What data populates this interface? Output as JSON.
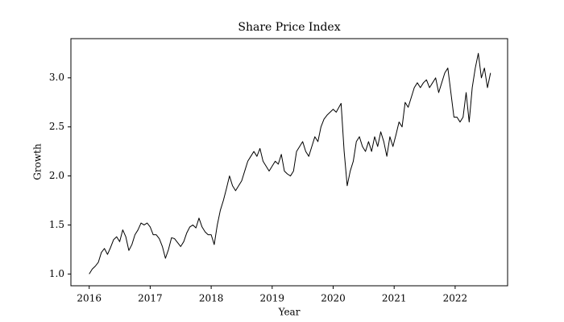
{
  "chart_data": {
    "type": "line",
    "title": "Share Price Index",
    "xlabel": "Year",
    "ylabel": "Growth",
    "xlim": [
      2015.7,
      2022.86
    ],
    "ylim": [
      0.88,
      3.4
    ],
    "xticks": [
      2016,
      2017,
      2018,
      2019,
      2020,
      2021,
      2022
    ],
    "yticks": [
      {
        "value": 1.0,
        "label": "1.0"
      },
      {
        "value": 1.5,
        "label": "1.5"
      },
      {
        "value": 2.0,
        "label": "2.0"
      },
      {
        "value": 2.5,
        "label": "2.5"
      },
      {
        "value": 3.0,
        "label": "3.0"
      }
    ],
    "grid": false,
    "color": "#000000",
    "x": [
      2016.0,
      2016.05,
      2016.1,
      2016.15,
      2016.2,
      2016.25,
      2016.3,
      2016.35,
      2016.4,
      2016.45,
      2016.5,
      2016.55,
      2016.6,
      2016.65,
      2016.7,
      2016.75,
      2016.8,
      2016.85,
      2016.9,
      2016.95,
      2017.0,
      2017.05,
      2017.1,
      2017.15,
      2017.2,
      2017.25,
      2017.3,
      2017.35,
      2017.4,
      2017.45,
      2017.5,
      2017.55,
      2017.6,
      2017.65,
      2017.7,
      2017.75,
      2017.8,
      2017.85,
      2017.9,
      2017.95,
      2018.0,
      2018.05,
      2018.1,
      2018.15,
      2018.2,
      2018.25,
      2018.3,
      2018.35,
      2018.4,
      2018.45,
      2018.5,
      2018.55,
      2018.6,
      2018.65,
      2018.7,
      2018.75,
      2018.8,
      2018.85,
      2018.9,
      2018.95,
      2019.0,
      2019.05,
      2019.1,
      2019.15,
      2019.2,
      2019.25,
      2019.3,
      2019.35,
      2019.4,
      2019.45,
      2019.5,
      2019.55,
      2019.6,
      2019.65,
      2019.7,
      2019.75,
      2019.8,
      2019.85,
      2019.9,
      2019.95,
      2020.0,
      2020.05,
      2020.13,
      2020.18,
      2020.23,
      2020.28,
      2020.33,
      2020.38,
      2020.43,
      2020.48,
      2020.53,
      2020.58,
      2020.63,
      2020.68,
      2020.73,
      2020.78,
      2020.83,
      2020.88,
      2020.93,
      2020.98,
      2021.03,
      2021.08,
      2021.13,
      2021.18,
      2021.23,
      2021.28,
      2021.33,
      2021.38,
      2021.43,
      2021.48,
      2021.53,
      2021.58,
      2021.63,
      2021.68,
      2021.73,
      2021.78,
      2021.83,
      2021.88,
      2021.93,
      2021.98,
      2022.03,
      2022.08,
      2022.13,
      2022.18,
      2022.23,
      2022.28,
      2022.33,
      2022.38,
      2022.43,
      2022.48,
      2022.53,
      2022.58
    ],
    "values": [
      1.0,
      1.05,
      1.08,
      1.12,
      1.22,
      1.26,
      1.2,
      1.27,
      1.35,
      1.38,
      1.33,
      1.45,
      1.38,
      1.24,
      1.3,
      1.4,
      1.45,
      1.52,
      1.5,
      1.52,
      1.48,
      1.4,
      1.4,
      1.36,
      1.28,
      1.16,
      1.25,
      1.37,
      1.36,
      1.32,
      1.28,
      1.33,
      1.42,
      1.48,
      1.5,
      1.47,
      1.57,
      1.48,
      1.43,
      1.4,
      1.4,
      1.3,
      1.5,
      1.65,
      1.75,
      1.87,
      2.0,
      1.9,
      1.85,
      1.9,
      1.95,
      2.05,
      2.15,
      2.2,
      2.25,
      2.2,
      2.28,
      2.15,
      2.1,
      2.05,
      2.1,
      2.15,
      2.12,
      2.22,
      2.05,
      2.02,
      2.0,
      2.05,
      2.25,
      2.3,
      2.35,
      2.25,
      2.2,
      2.3,
      2.4,
      2.35,
      2.5,
      2.58,
      2.62,
      2.65,
      2.68,
      2.65,
      2.74,
      2.25,
      1.9,
      2.05,
      2.15,
      2.35,
      2.4,
      2.3,
      2.25,
      2.35,
      2.25,
      2.4,
      2.3,
      2.45,
      2.35,
      2.2,
      2.4,
      2.3,
      2.42,
      2.55,
      2.5,
      2.75,
      2.7,
      2.8,
      2.9,
      2.95,
      2.9,
      2.95,
      2.98,
      2.9,
      2.95,
      3.0,
      2.85,
      2.95,
      3.05,
      3.1,
      2.85,
      2.6,
      2.6,
      2.55,
      2.6,
      2.85,
      2.55,
      2.9,
      3.1,
      3.25,
      3.0,
      3.1,
      2.9,
      3.05
    ]
  }
}
